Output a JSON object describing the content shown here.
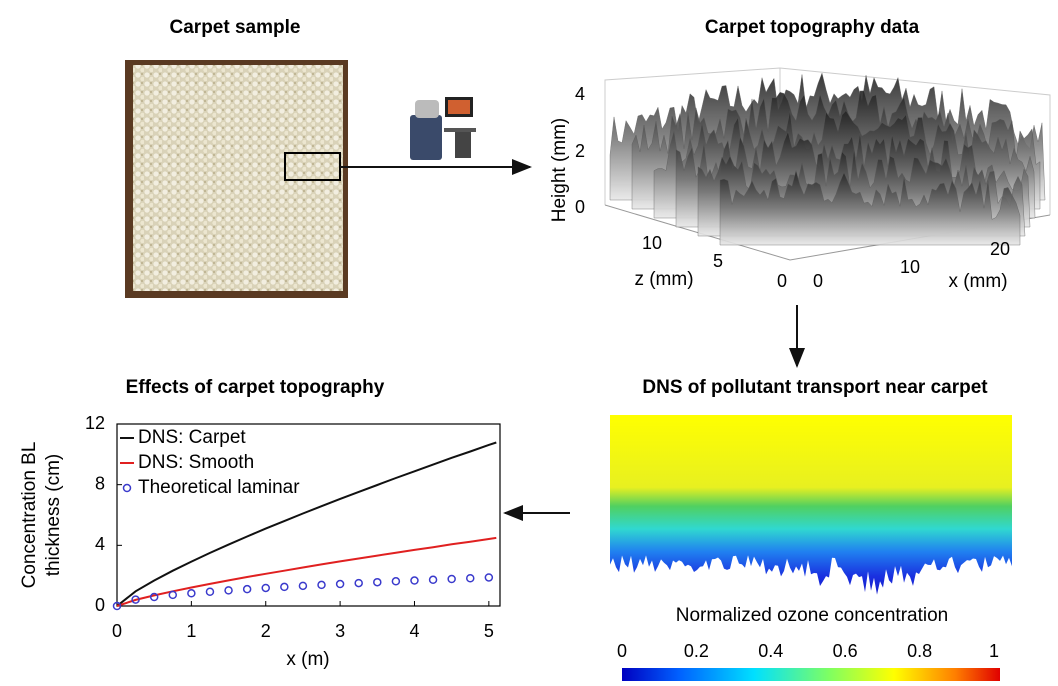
{
  "panels": {
    "sample": {
      "title": "Carpet sample"
    },
    "topography": {
      "title": "Carpet topography data",
      "height_label": "Height (mm)",
      "z_label": "z (mm)",
      "x_label": "x (mm)",
      "height_ticks": [
        4,
        2,
        0
      ],
      "z_ticks": [
        10,
        5,
        0
      ],
      "x_ticks": [
        0,
        10,
        20
      ]
    },
    "dns": {
      "title": "DNS of pollutant transport near carpet",
      "colorbar_label": "Normalized ozone concentration",
      "colorbar_ticks": [
        0,
        0.2,
        0.4,
        0.6,
        0.8,
        1
      ]
    }
  },
  "chart_data": {
    "type": "line",
    "title": "Effects of carpet topography",
    "x_label": "x (m)",
    "y_label": [
      "Concentration BL",
      "thickness (cm)"
    ],
    "x": [
      0,
      0.25,
      0.5,
      0.75,
      1,
      1.25,
      1.5,
      1.75,
      2,
      2.25,
      2.5,
      2.75,
      3,
      3.25,
      3.5,
      3.75,
      4,
      4.25,
      4.5,
      4.75,
      5,
      5.1
    ],
    "series": [
      {
        "name": "DNS: Carpet",
        "color": "#111111",
        "marker": "line",
        "values": [
          0,
          0.97,
          1.68,
          2.33,
          2.93,
          3.5,
          4.05,
          4.58,
          5.1,
          5.6,
          6.1,
          6.58,
          7.06,
          7.52,
          7.98,
          8.44,
          8.88,
          9.32,
          9.77,
          10.19,
          10.62,
          10.78
        ]
      },
      {
        "name": "DNS: Smooth",
        "color": "#e02020",
        "marker": "line",
        "values": [
          0,
          0.4,
          0.7,
          0.97,
          1.22,
          1.46,
          1.69,
          1.91,
          2.12,
          2.33,
          2.54,
          2.74,
          2.94,
          3.13,
          3.32,
          3.51,
          3.7,
          3.88,
          4.07,
          4.24,
          4.42,
          4.49
        ]
      },
      {
        "name": "Theoretical laminar",
        "color": "#3a3acc",
        "marker": "circle",
        "values": [
          0,
          0.42,
          0.59,
          0.73,
          0.84,
          0.94,
          1.03,
          1.11,
          1.19,
          1.26,
          1.33,
          1.39,
          1.45,
          1.51,
          1.57,
          1.63,
          1.68,
          1.73,
          1.78,
          1.83,
          1.88,
          null
        ]
      }
    ],
    "xlim": [
      0,
      5.15
    ],
    "ylim": [
      0,
      12
    ],
    "xticks": [
      0,
      1,
      2,
      3,
      4,
      5
    ],
    "yticks": [
      0,
      4,
      8,
      12
    ],
    "legend": "upper-left"
  }
}
